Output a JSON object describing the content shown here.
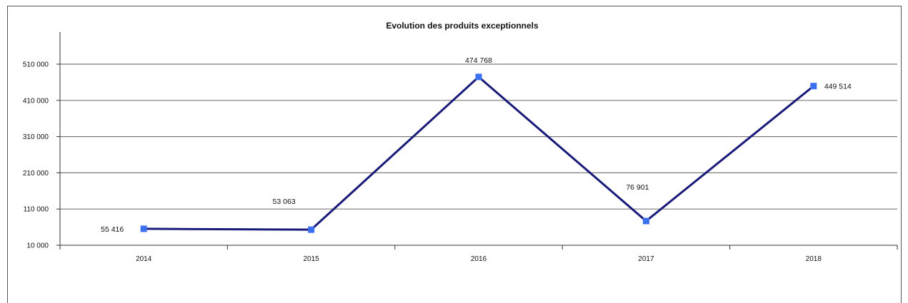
{
  "chart_data": {
    "type": "line",
    "title": "Evolution des produits exceptionnels",
    "xlabel": "",
    "ylabel": "",
    "categories": [
      "2014",
      "2015",
      "2016",
      "2017",
      "2018"
    ],
    "series": [
      {
        "values": [
          55416,
          53063,
          474768,
          76901,
          449514
        ],
        "data_labels": [
          "55 416",
          "53 063",
          "474 768",
          "76 901",
          "449 514"
        ],
        "color": "#1a1a7a",
        "marker_color": "#3a6ff0"
      }
    ],
    "y_ticks": [
      10000,
      110000,
      210000,
      310000,
      410000,
      510000
    ],
    "y_tick_labels": [
      "10 000",
      "110 000",
      "210 000",
      "310 000",
      "410 000",
      "510 000"
    ],
    "ylim": [
      10000,
      510000
    ],
    "grid": true,
    "legend": "none"
  }
}
